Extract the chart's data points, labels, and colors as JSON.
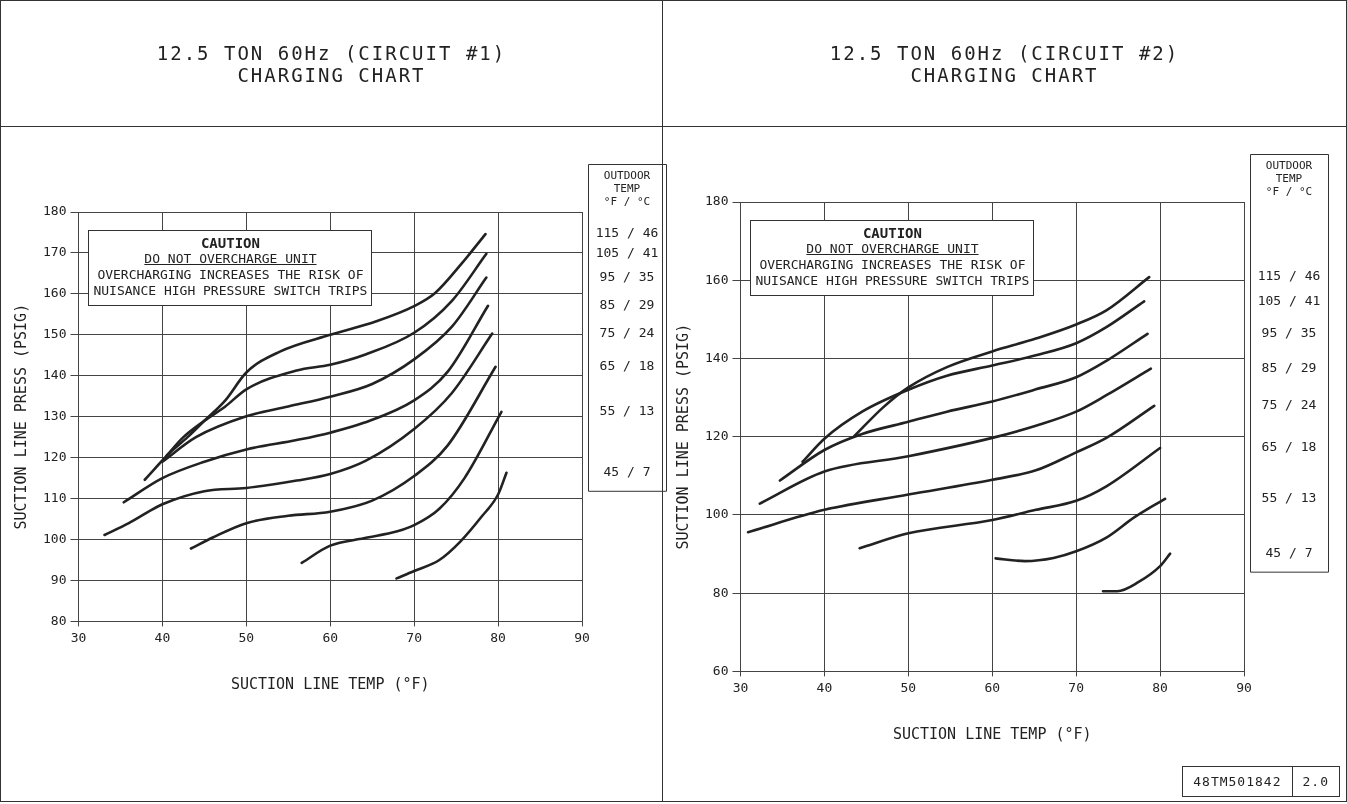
{
  "chart_data": [
    {
      "type": "line",
      "title": "12.5 TON 60Hz (CIRCUIT #1)\nCHARGING CHART",
      "xlabel": "SUCTION LINE TEMP (°F)",
      "ylabel": "SUCTION LINE PRESS (PSIG)",
      "legend_title": "OUTDOOR\nTEMP\n°F / °C",
      "xlim": [
        30,
        90
      ],
      "xticks": [
        30,
        40,
        50,
        60,
        70,
        80,
        90
      ],
      "ylim": [
        80,
        180
      ],
      "yticks": [
        80,
        90,
        100,
        110,
        120,
        130,
        140,
        150,
        160,
        170,
        180
      ],
      "grid": true,
      "marker": "none",
      "line_style": "solid",
      "annotations": [
        "CAUTION",
        "DO NOT OVERCHARGE UNIT",
        "OVERCHARGING INCREASES THE RISK OF",
        "NUISANCE HIGH PRESSURE SWITCH TRIPS"
      ],
      "series": [
        {
          "name": "115 / 46",
          "color": "#222222",
          "x": [
            37.9,
            40.8,
            43,
            45,
            47.5,
            50,
            54,
            60,
            65.5,
            70,
            72.5,
            75.7,
            78.5
          ],
          "values": [
            114.6,
            121,
            125,
            129,
            134,
            140.8,
            145.9,
            150,
            153.3,
            157,
            160.2,
            167.5,
            174.6
          ]
        },
        {
          "name": "105 / 41",
          "color": "#222222",
          "x": [
            40.5,
            42.5,
            45,
            47.5,
            50,
            56,
            60,
            64.2,
            70,
            74.5,
            78.6
          ],
          "values": [
            120.5,
            125,
            129,
            132.5,
            136.7,
            141.3,
            142.7,
            145.2,
            150.5,
            158.3,
            169.8
          ]
        },
        {
          "name": "95 / 35",
          "color": "#222222",
          "x": [
            40,
            44,
            50,
            55,
            60,
            65,
            70,
            74.5,
            78.6
          ],
          "values": [
            119,
            125,
            130.1,
            132.5,
            134.9,
            138,
            144,
            152,
            164
          ]
        },
        {
          "name": "85 / 29",
          "color": "#222222",
          "x": [
            35.4,
            40,
            45,
            50,
            56,
            60,
            64,
            70,
            74,
            78.8
          ],
          "values": [
            109.1,
            115,
            119,
            122,
            124.3,
            126.1,
            128.5,
            134,
            141,
            157.1
          ]
        },
        {
          "name": "75 / 24",
          "color": "#222222",
          "x": [
            33.1,
            36,
            40,
            45,
            50,
            56,
            60,
            64.2,
            70,
            74.5,
            79.3
          ],
          "values": [
            101.1,
            104,
            108.6,
            111.8,
            112.6,
            114.4,
            116,
            119.2,
            127,
            135.8,
            150.3
          ]
        },
        {
          "name": "65 / 18",
          "color": "#222222",
          "x": [
            43.4,
            46,
            50,
            55,
            60,
            65,
            70,
            74,
            79.7
          ],
          "values": [
            97.8,
            100.5,
            104,
            105.8,
            106.8,
            109.5,
            115.5,
            123,
            142.2
          ]
        },
        {
          "name": "55 / 13",
          "color": "#222222",
          "x": [
            56.6,
            60,
            64,
            68,
            70,
            73,
            76,
            80.4
          ],
          "values": [
            94.3,
            98.5,
            100.3,
            102,
            103.5,
            107.5,
            115,
            131.2
          ]
        },
        {
          "name": "45 / 7",
          "color": "#222222",
          "x": [
            67.9,
            70,
            73,
            75.5,
            78,
            80,
            81
          ],
          "values": [
            90.5,
            92.3,
            95,
            99.5,
            105.5,
            111,
            116.3
          ]
        }
      ]
    },
    {
      "type": "line",
      "title": "12.5 TON 60Hz (CIRCUIT #2)\nCHARGING CHART",
      "xlabel": "SUCTION LINE TEMP (°F)",
      "ylabel": "SUCTION LINE PRESS (PSIG)",
      "legend_title": "OUTDOOR\nTEMP\n°F / °C",
      "xlim": [
        30,
        90
      ],
      "xticks": [
        30,
        40,
        50,
        60,
        70,
        80,
        90
      ],
      "ylim": [
        60,
        180
      ],
      "yticks": [
        60,
        80,
        100,
        120,
        140,
        160,
        180
      ],
      "grid": true,
      "marker": "none",
      "line_style": "solid",
      "annotations": [
        "CAUTION",
        "DO NOT OVERCHARGE UNIT",
        "OVERCHARGING INCREASES THE RISK OF",
        "NUISANCE HIGH PRESSURE SWITCH TRIPS",
        "48TM501842",
        "2.0"
      ],
      "series": [
        {
          "name": "115 / 46",
          "color": "#222222",
          "x": [
            43.5,
            47,
            50,
            54.6,
            60,
            65.2,
            70,
            73.6,
            78.7
          ],
          "values": [
            120,
            127.5,
            132.6,
            137.8,
            141.8,
            145.1,
            148.7,
            152.3,
            160.8
          ]
        },
        {
          "name": "105 / 41",
          "color": "#222222",
          "x": [
            37.4,
            40,
            44.5,
            50,
            54.6,
            60,
            65.2,
            70,
            73.6,
            78.1
          ],
          "values": [
            113.6,
            119.5,
            126.4,
            132,
            135.6,
            138.2,
            140.8,
            143.9,
            148,
            154.6
          ]
        },
        {
          "name": "95 / 35",
          "color": "#222222",
          "x": [
            34.7,
            40,
            44.5,
            50,
            54.6,
            60,
            65.2,
            70,
            73.6,
            78.5
          ],
          "values": [
            108.8,
            116.6,
            120.7,
            123.8,
            126.4,
            129,
            132.1,
            135.2,
            139.4,
            146.3
          ]
        },
        {
          "name": "85 / 29",
          "color": "#222222",
          "x": [
            32.3,
            40,
            50,
            60,
            65.2,
            70,
            73.6,
            78.9
          ],
          "values": [
            102.9,
            111.1,
            115,
            119.7,
            122.8,
            126.4,
            130.6,
            137.4
          ]
        },
        {
          "name": "75 / 24",
          "color": "#222222",
          "x": [
            30.9,
            40,
            50,
            60,
            65.2,
            70,
            73.6,
            79.3
          ],
          "values": [
            95.6,
            101.3,
            105.2,
            109,
            111.4,
            116,
            119.7,
            127.9
          ]
        },
        {
          "name": "65 / 18",
          "color": "#222222",
          "x": [
            44.2,
            50,
            60,
            65.2,
            70,
            73.6,
            80
          ],
          "values": [
            91.5,
            95.3,
            98.7,
            101.3,
            103.6,
            107.3,
            117.1
          ]
        },
        {
          "name": "55 / 13",
          "color": "#222222",
          "x": [
            60.4,
            63.9,
            67.3,
            70,
            73.6,
            77,
            80.6
          ],
          "values": [
            88.9,
            88.2,
            89,
            90.7,
            94.2,
            99.5,
            104.1
          ]
        },
        {
          "name": "45 / 7",
          "color": "#222222",
          "x": [
            73.2,
            74.9,
            77.4,
            80,
            81.2
          ],
          "values": [
            80.5,
            80.5,
            82.8,
            86.9,
            90.1
          ]
        }
      ]
    }
  ]
}
